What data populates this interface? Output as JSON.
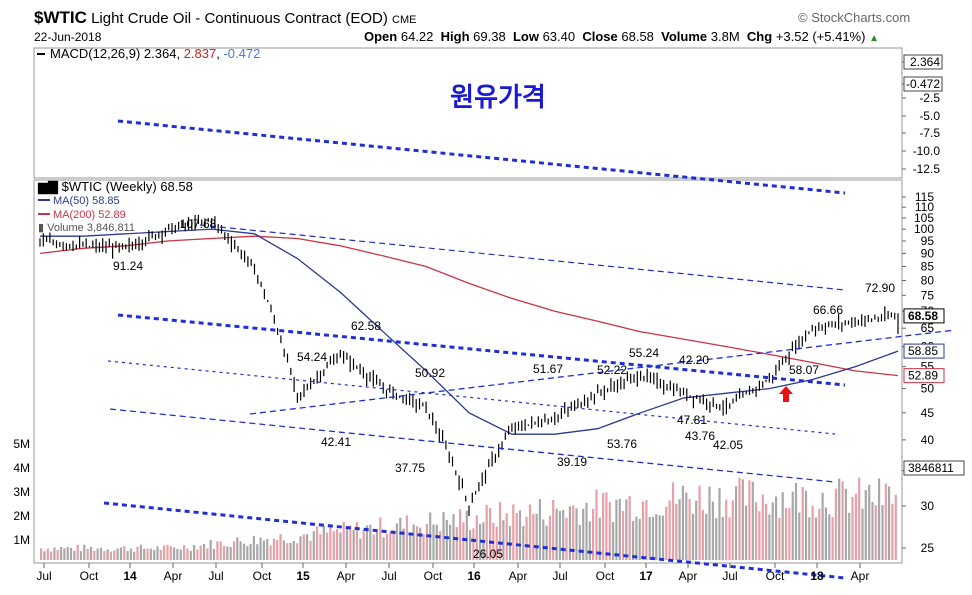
{
  "header": {
    "symbol": "$WTIC",
    "name": "Light Crude Oil - Continuous Contract (EOD)",
    "exchange": "CME",
    "date": "22-Jun-2018",
    "source": "© StockCharts.com",
    "open_label": "Open",
    "open": "64.22",
    "high_label": "High",
    "high": "69.38",
    "low_label": "Low",
    "low": "63.40",
    "close_label": "Close",
    "close": "68.58",
    "volume_label": "Volume",
    "volume": "3.8M",
    "chg_label": "Chg",
    "chg": "+3.52 (+5.41%)"
  },
  "macd_panel": {
    "legend_name": "MACD(12,26,9)",
    "macd": "2.364",
    "signal": "2.837",
    "hist": "-0.472",
    "title_korean": "원유가격",
    "y_ticks": [
      "2.364",
      "-0.472",
      "-2.5",
      "-5.0",
      "-7.5",
      "-10.0",
      "-12.5"
    ]
  },
  "price_panel": {
    "legend": {
      "main": "$WTIC (Weekly) 68.58",
      "ma50": "MA(50) 58.85",
      "ma200": "MA(200) 52.89",
      "volume": "Volume 3,846,811"
    },
    "y_ticks": [
      "115",
      "110",
      "105",
      "100",
      "95",
      "90",
      "85",
      "80",
      "75",
      "70",
      "65",
      "60",
      "55",
      "50",
      "45",
      "40",
      "35",
      "30",
      "25"
    ],
    "vol_ticks": [
      "5M",
      "4M",
      "3M",
      "2M",
      "1M"
    ],
    "right_tags": [
      "68.58",
      "58.85",
      "52.89",
      "3846811"
    ],
    "x_ticks": [
      "Jul",
      "Oct",
      "14",
      "Apr",
      "Jul",
      "Oct",
      "15",
      "Apr",
      "Jul",
      "Oct",
      "16",
      "Apr",
      "Jul",
      "Oct",
      "17",
      "Apr",
      "Jul",
      "Oct",
      "18",
      "Apr"
    ],
    "annotations": [
      "107.68",
      "91.24",
      "62.58",
      "54.24",
      "42.41",
      "50.92",
      "37.75",
      "26.05",
      "51.67",
      "39.19",
      "52.22",
      "55.24",
      "42.20",
      "53.76",
      "47.81",
      "43.76",
      "42.05",
      "66.66",
      "58.07",
      "72.90"
    ]
  },
  "colors": {
    "price": "#000000",
    "ma50": "#2b3a8f",
    "ma200": "#cc3344",
    "macd_signal": "#d02020",
    "macd_hist": "#4a78d8",
    "trend": "#1f2fd8",
    "volume": "#b0b0b0",
    "title_korean": "#1a1ad0"
  },
  "chart_data": {
    "type": "line",
    "x": [
      "2013-07",
      "2013-10",
      "2014-01",
      "2014-04",
      "2014-07",
      "2014-10",
      "2015-01",
      "2015-04",
      "2015-07",
      "2015-10",
      "2016-01",
      "2016-04",
      "2016-07",
      "2016-10",
      "2017-01",
      "2017-04",
      "2017-07",
      "2017-10",
      "2018-01",
      "2018-04",
      "2018-06"
    ],
    "series": [
      {
        "name": "$WTIC (Weekly)",
        "values": [
          95,
          93,
          92,
          100,
          104,
          84,
          48,
          58,
          50,
          46,
          30,
          42,
          44,
          49,
          53,
          49,
          46,
          52,
          65,
          67,
          68.58
        ]
      },
      {
        "name": "MA(50)",
        "values": [
          97,
          97,
          98,
          99,
          100,
          98,
          88,
          76,
          64,
          54,
          45,
          41,
          41,
          42,
          45,
          48,
          49,
          50,
          52,
          55,
          58.85
        ]
      },
      {
        "name": "MA(200)",
        "values": [
          90,
          92,
          93,
          95,
          96,
          97,
          96,
          93,
          89,
          85,
          79,
          74,
          70,
          67,
          64,
          62,
          60,
          58,
          56,
          54,
          52.89
        ]
      }
    ],
    "volume": {
      "name": "Volume",
      "last": 3846811,
      "unit": "shares"
    },
    "macd": {
      "name": "MACD(12,26,9)",
      "macd": 2.364,
      "signal": 2.837,
      "hist": -0.472
    },
    "ylim": [
      25,
      115
    ],
    "ylog": true,
    "grid": false,
    "legend_position": "top-left"
  }
}
